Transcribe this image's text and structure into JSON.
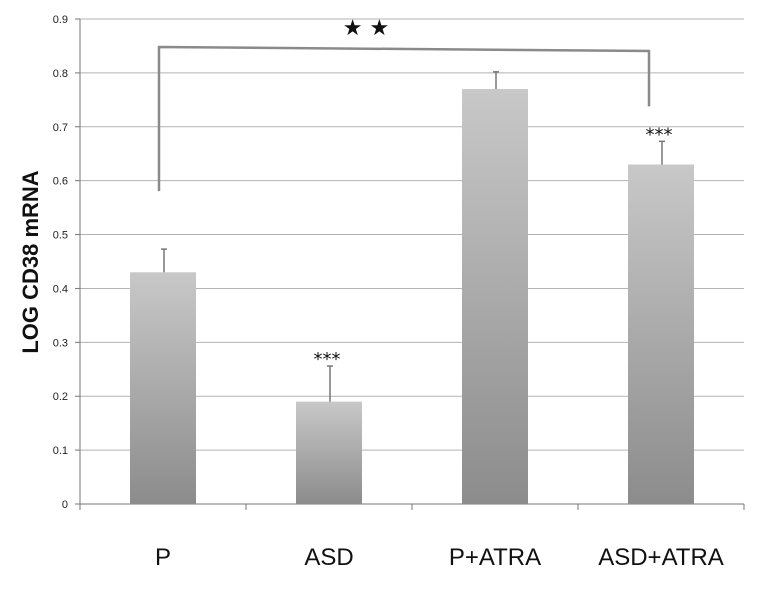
{
  "chart_data": {
    "type": "bar",
    "categories": [
      "P",
      "ASD",
      "P+ATRA",
      "ASD+ATRA"
    ],
    "values": [
      0.43,
      0.19,
      0.77,
      0.63
    ],
    "error_upper": [
      0.043,
      0.066,
      0.032,
      0.043
    ],
    "significance": [
      "",
      "***",
      "",
      "***"
    ],
    "bracket": {
      "from": "P",
      "to": "ASD+ATRA",
      "label": "★ ★"
    },
    "ylabel": "LOG CD38 mRNA",
    "ylim": [
      0,
      0.9
    ],
    "yticks": [
      "0",
      "0.1",
      "0.2",
      "0.3",
      "0.4",
      "0.5",
      "0.6",
      "0.7",
      "0.8",
      "0.9"
    ],
    "grid": true,
    "colors": {
      "bar_top": "#c8c8c8",
      "bar_bottom": "#8c8c8c",
      "grid": "#b3b3b3",
      "bracket": "#8a8a8a"
    }
  }
}
